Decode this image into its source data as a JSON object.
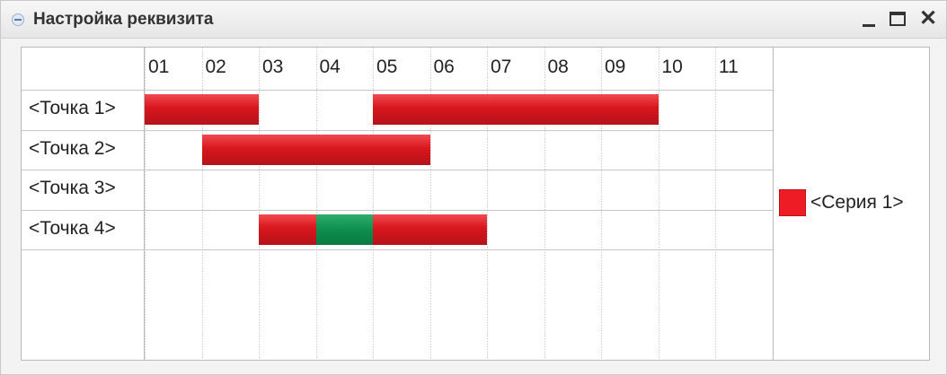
{
  "window": {
    "title": "Настройка реквизита",
    "controls": {
      "minimize": "minimize-icon",
      "maximize": "maximize-icon",
      "close": "close-icon"
    }
  },
  "chart_data": {
    "type": "gantt",
    "periods": [
      "01",
      "02",
      "03",
      "04",
      "05",
      "06",
      "07",
      "08",
      "09",
      "10",
      "11"
    ],
    "points": [
      "<Точка 1>",
      "<Точка 2>",
      "<Точка 3>",
      "<Точка 4>"
    ],
    "series": [
      {
        "name": "<Серия 1>",
        "color": "#ee1c25"
      }
    ],
    "intervals": [
      {
        "point": 0,
        "start": 0,
        "end": 2,
        "color": "#ee1c25"
      },
      {
        "point": 0,
        "start": 4,
        "end": 9,
        "color": "#ee1c25"
      },
      {
        "point": 1,
        "start": 1,
        "end": 5,
        "color": "#ee1c25"
      },
      {
        "point": 3,
        "start": 2,
        "end": 3,
        "color": "#ee1c25"
      },
      {
        "point": 3,
        "start": 3,
        "end": 4,
        "color": "#0d8f4e"
      },
      {
        "point": 3,
        "start": 4,
        "end": 6,
        "color": "#ee1c25"
      }
    ],
    "legend_position": "right"
  }
}
